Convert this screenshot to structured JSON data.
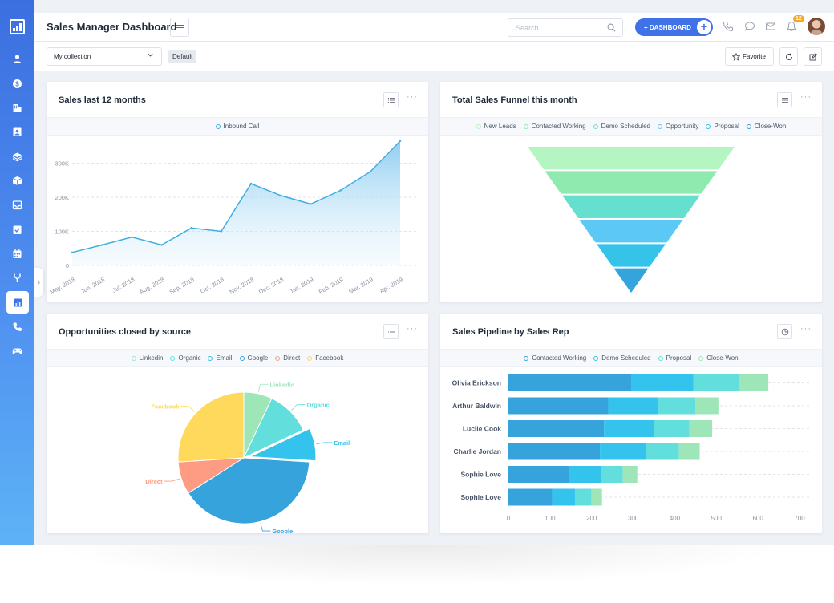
{
  "header": {
    "title": "Sales Manager Dashboard",
    "search_placeholder": "Search...",
    "dashboard_button": "+ DASHBOARD",
    "notification_count": "12"
  },
  "toolbar": {
    "collection_select": "My collection",
    "default_chip": "Default",
    "favorite_button": "Favorite"
  },
  "sidebar": {
    "items": [
      "user-icon",
      "dollar-icon",
      "building-icon",
      "contact-card-icon",
      "layers-icon",
      "box-icon",
      "inbox-icon",
      "task-icon",
      "calendar-icon",
      "fork-icon",
      "chart-icon",
      "phone-icon",
      "gamepad-icon"
    ],
    "active": "chart-icon"
  },
  "colors": {
    "primary": "#3e72e6",
    "area_line": "#3eaee0"
  },
  "cards": {
    "sales": {
      "title": "Sales last 12 months"
    },
    "funnel": {
      "title": "Total Sales Funnel this month"
    },
    "source": {
      "title": "Opportunities closed by source"
    },
    "pipeline": {
      "title": "Sales Pipeline by Sales Rep"
    }
  },
  "chart_data": [
    {
      "type": "area",
      "title": "Sales last 12 months",
      "categories": [
        "May. 2018",
        "Jun. 2018",
        "Jul. 2018",
        "Aug. 2018",
        "Sep. 2018",
        "Oct. 2018",
        "Nov. 2018",
        "Dec. 2018",
        "Jan. 2019",
        "Feb. 2019",
        "Mar. 2019",
        "Apr. 2019"
      ],
      "series": [
        {
          "name": "Inbound Call",
          "color": "#3eaee0",
          "values": [
            38000,
            60000,
            83000,
            60000,
            110000,
            100000,
            240000,
            205000,
            180000,
            220000,
            275000,
            365000
          ]
        }
      ],
      "yticks": [
        0,
        100000,
        200000,
        300000
      ],
      "ytick_labels": [
        "0",
        "100K",
        "200K",
        "300K"
      ],
      "ylim": [
        0,
        360000
      ],
      "grid": true,
      "legend": "top-center"
    },
    {
      "type": "funnel",
      "title": "Total Sales Funnel this month",
      "stages": [
        {
          "name": "New Leads",
          "color": "#b4f5c2"
        },
        {
          "name": "Contacted Working",
          "color": "#8eeaaf"
        },
        {
          "name": "Demo Scheduled",
          "color": "#66e0ce"
        },
        {
          "name": "Opportunity",
          "color": "#5cc8f6"
        },
        {
          "name": "Proposal",
          "color": "#35c3e9"
        },
        {
          "name": "Close-Won",
          "color": "#33a4dc"
        }
      ],
      "legend": "top-center"
    },
    {
      "type": "pie",
      "title": "Opportunities closed by source",
      "slices": [
        {
          "name": "Linkedin",
          "value": 7,
          "color": "#9ee6b8"
        },
        {
          "name": "Organic",
          "value": 11,
          "color": "#62dfdc"
        },
        {
          "name": "Email",
          "value": 8,
          "color": "#33c3ec"
        },
        {
          "name": "Google",
          "value": 40,
          "color": "#37a3dc"
        },
        {
          "name": "Direct",
          "value": 8,
          "color": "#fd9c82"
        },
        {
          "name": "Facebook",
          "value": 26,
          "color": "#ffd95c"
        }
      ],
      "legend": "top-center"
    },
    {
      "type": "bar",
      "orientation": "horizontal",
      "stacked": true,
      "title": "Sales Pipeline by Sales Rep",
      "categories": [
        "Olivia Erickson",
        "Arthur Baldwin",
        "Lucile Cook",
        "Charlie Jordan",
        "Sophie Love",
        "Sophie Love"
      ],
      "series": [
        {
          "name": "Contacted Working",
          "color": "#37a3dc",
          "values": [
            295,
            240,
            230,
            220,
            145,
            105
          ]
        },
        {
          "name": "Demo Scheduled",
          "color": "#33c3ec",
          "values": [
            150,
            120,
            120,
            110,
            78,
            55
          ]
        },
        {
          "name": "Proposal",
          "color": "#62dfdc",
          "values": [
            110,
            90,
            85,
            80,
            52,
            40
          ]
        },
        {
          "name": "Close-Won",
          "color": "#9ee6b8",
          "values": [
            70,
            55,
            55,
            50,
            35,
            25
          ]
        }
      ],
      "xticks": [
        0,
        100,
        200,
        300,
        400,
        500,
        600,
        700
      ],
      "xlim": [
        0,
        700
      ],
      "grid": true,
      "legend": "top-center"
    }
  ]
}
